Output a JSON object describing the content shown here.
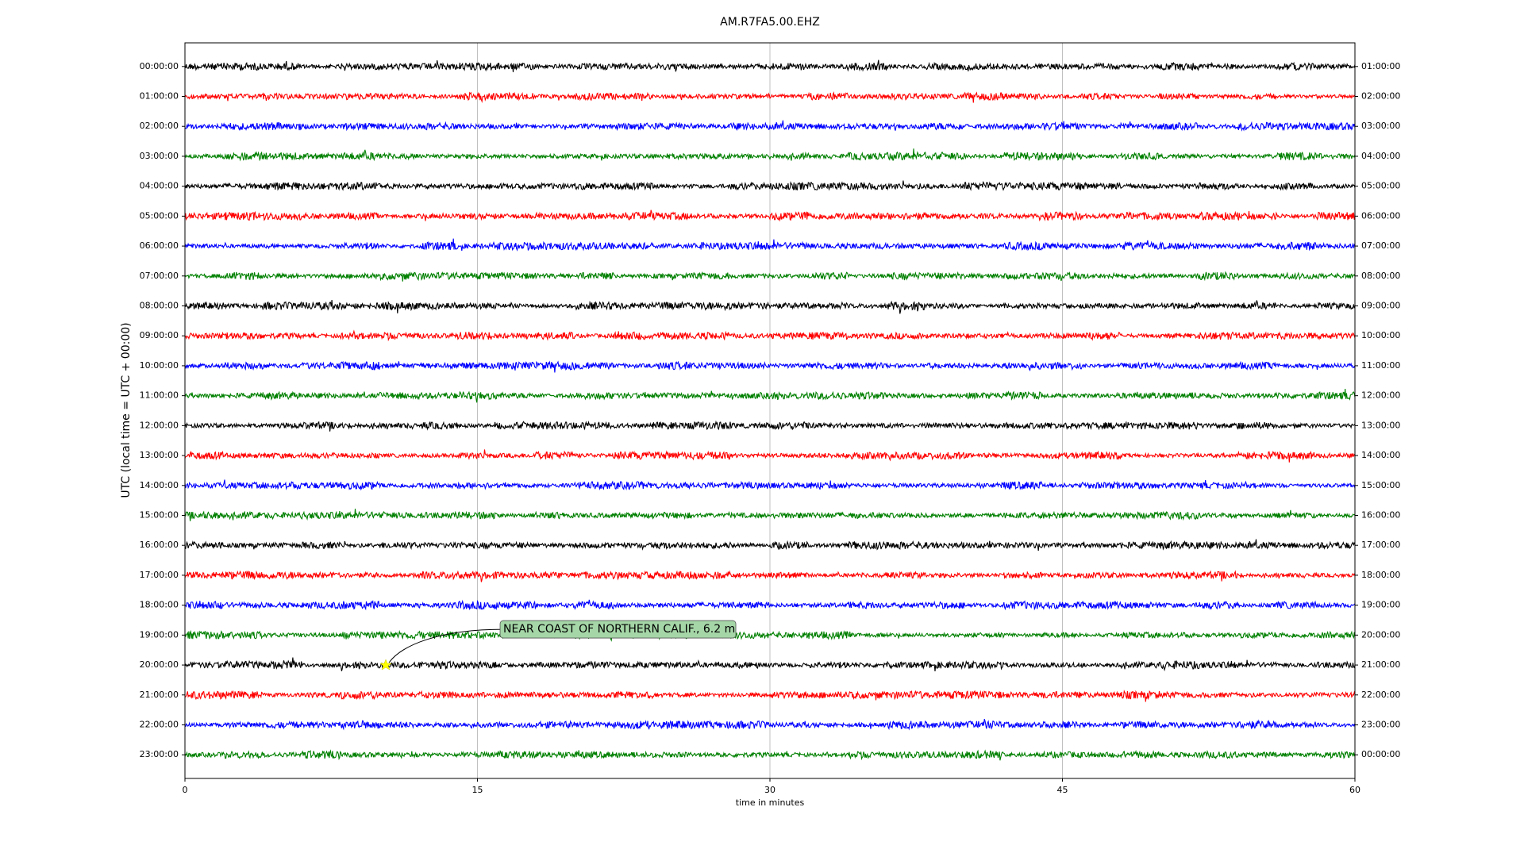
{
  "chart_data": {
    "type": "dayplot",
    "title": "AM.R7FA5.00.EHZ",
    "xlabel": "time in minutes",
    "ylabel": "UTC (local time = UTC + 00:00)",
    "xlim": [
      0,
      60
    ],
    "xticks": [
      0,
      15,
      30,
      45,
      60
    ],
    "grid": true,
    "ylim": [
      23.79,
      -0.79
    ],
    "y2lim": [
      23.79,
      -0.79
    ],
    "colors": [
      "#000000",
      "#ff0000",
      "#0000ff",
      "#008000"
    ],
    "yticks": [
      {
        "value": 0,
        "label": "00:00:00"
      },
      {
        "value": 1,
        "label": "01:00:00"
      },
      {
        "value": 2,
        "label": "02:00:00"
      },
      {
        "value": 3,
        "label": "03:00:00"
      },
      {
        "value": 4,
        "label": "04:00:00"
      },
      {
        "value": 5,
        "label": "05:00:00"
      },
      {
        "value": 6,
        "label": "06:00:00"
      },
      {
        "value": 7,
        "label": "07:00:00"
      },
      {
        "value": 8,
        "label": "08:00:00"
      },
      {
        "value": 9,
        "label": "09:00:00"
      },
      {
        "value": 10,
        "label": "10:00:00"
      },
      {
        "value": 11,
        "label": "11:00:00"
      },
      {
        "value": 12,
        "label": "12:00:00"
      },
      {
        "value": 13,
        "label": "13:00:00"
      },
      {
        "value": 14,
        "label": "14:00:00"
      },
      {
        "value": 15,
        "label": "15:00:00"
      },
      {
        "value": 16,
        "label": "16:00:00"
      },
      {
        "value": 17,
        "label": "17:00:00"
      },
      {
        "value": 18,
        "label": "18:00:00"
      },
      {
        "value": 19,
        "label": "19:00:00"
      },
      {
        "value": 20,
        "label": "20:00:00"
      },
      {
        "value": 21,
        "label": "21:00:00"
      },
      {
        "value": 22,
        "label": "22:00:00"
      },
      {
        "value": 23,
        "label": "23:00:00"
      }
    ],
    "y2ticks": [
      {
        "value": 0,
        "label": "01:00:00"
      },
      {
        "value": 1,
        "label": "02:00:00"
      },
      {
        "value": 2,
        "label": "03:00:00"
      },
      {
        "value": 3,
        "label": "04:00:00"
      },
      {
        "value": 4,
        "label": "05:00:00"
      },
      {
        "value": 5,
        "label": "06:00:00"
      },
      {
        "value": 6,
        "label": "07:00:00"
      },
      {
        "value": 7,
        "label": "08:00:00"
      },
      {
        "value": 8,
        "label": "09:00:00"
      },
      {
        "value": 9,
        "label": "10:00:00"
      },
      {
        "value": 10,
        "label": "11:00:00"
      },
      {
        "value": 11,
        "label": "12:00:00"
      },
      {
        "value": 12,
        "label": "13:00:00"
      },
      {
        "value": 13,
        "label": "14:00:00"
      },
      {
        "value": 14,
        "label": "15:00:00"
      },
      {
        "value": 15,
        "label": "16:00:00"
      },
      {
        "value": 16,
        "label": "17:00:00"
      },
      {
        "value": 17,
        "label": "18:00:00"
      },
      {
        "value": 18,
        "label": "19:00:00"
      },
      {
        "value": 19,
        "label": "20:00:00"
      },
      {
        "value": 20,
        "label": "21:00:00"
      },
      {
        "value": 21,
        "label": "22:00:00"
      },
      {
        "value": 22,
        "label": "23:00:00"
      },
      {
        "value": 23,
        "label": "00:00:00"
      }
    ],
    "annotation": {
      "text": "NEAR COAST OF NORTHERN CALIF., 6.2 m",
      "x": 10.3,
      "y": 20
    }
  }
}
